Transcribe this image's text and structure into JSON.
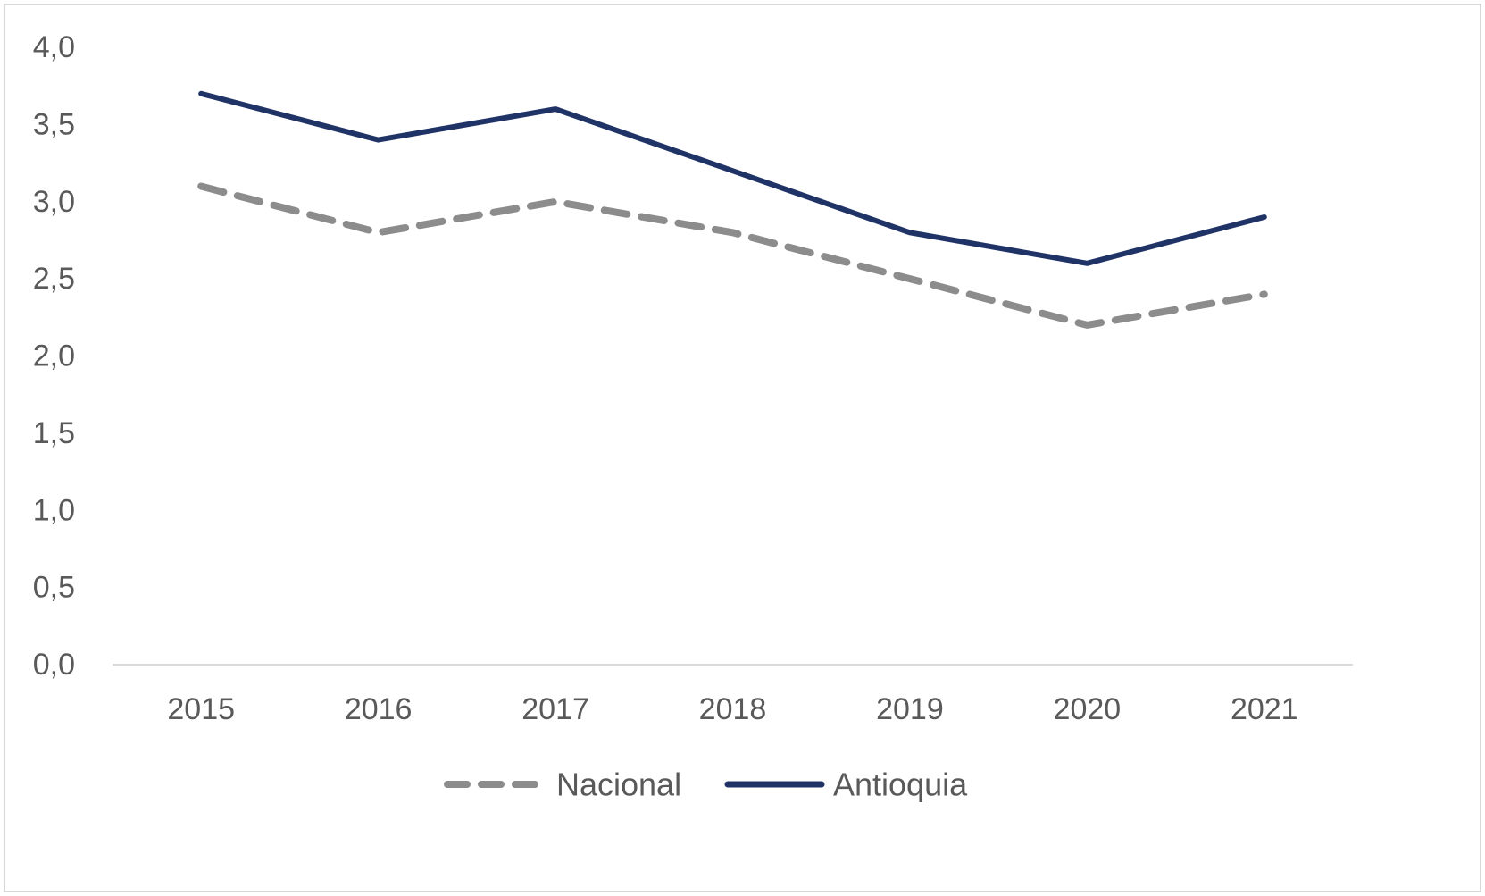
{
  "chart_data": {
    "type": "line",
    "title": "",
    "xlabel": "",
    "ylabel": "",
    "categories": [
      "2015",
      "2016",
      "2017",
      "2018",
      "2019",
      "2020",
      "2021"
    ],
    "series": [
      {
        "name": "Nacional",
        "values": [
          3.1,
          2.8,
          3.0,
          2.8,
          2.5,
          2.2,
          2.4
        ],
        "color": "#8c8c8c",
        "style": "dashed"
      },
      {
        "name": "Antioquia",
        "values": [
          3.7,
          3.4,
          3.6,
          3.2,
          2.8,
          2.6,
          2.9
        ],
        "color": "#1f3366",
        "style": "solid"
      }
    ],
    "ylim": [
      0,
      4
    ],
    "yticks": [
      "0,0",
      "0,5",
      "1,0",
      "1,5",
      "2,0",
      "2,5",
      "3,0",
      "3,5",
      "4,0"
    ],
    "grid": false,
    "legend_position": "bottom",
    "axis_color": "#d9d9d9"
  }
}
